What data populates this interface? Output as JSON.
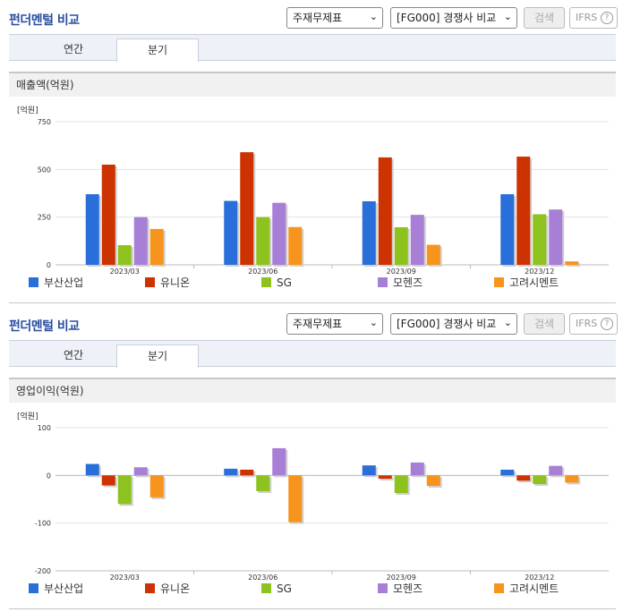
{
  "panels": [
    {
      "header": {
        "title": "펀더멘털 비교",
        "statement_select": "주재무제표",
        "peer_select": "[FG000] 경쟁사 비교",
        "search_label": "검색",
        "ifrs_label": "IFRS",
        "help_label": "?"
      },
      "tabs": [
        "연간",
        "분기"
      ],
      "active_tab": 1,
      "section_title": "매출액(억원)"
    },
    {
      "header": {
        "title": "펀더멘털 비교",
        "statement_select": "주재무제표",
        "peer_select": "[FG000] 경쟁사 비교",
        "search_label": "검색",
        "ifrs_label": "IFRS",
        "help_label": "?"
      },
      "tabs": [
        "연간",
        "분기"
      ],
      "active_tab": 1,
      "section_title": "영업이익(억원)"
    }
  ],
  "colors": {
    "부산산업": "#2a6fd9",
    "유니온": "#cc3300",
    "SG": "#8dc21f",
    "모헨즈": "#a77fd6",
    "고려시멘트": "#f7941d"
  },
  "chart_data": [
    {
      "type": "bar",
      "unit_label": "[억원]",
      "categories": [
        "2023/03",
        "2023/06",
        "2023/09",
        "2023/12"
      ],
      "ylim": [
        0,
        750
      ],
      "yticks": [
        0,
        250,
        500,
        750
      ],
      "grid": true,
      "legend_position": "bottom",
      "series": [
        {
          "name": "부산산업",
          "values": [
            370,
            335,
            333,
            370
          ]
        },
        {
          "name": "유니온",
          "values": [
            525,
            590,
            563,
            567
          ]
        },
        {
          "name": "SG",
          "values": [
            103,
            250,
            197,
            265
          ]
        },
        {
          "name": "모헨즈",
          "values": [
            250,
            325,
            262,
            290
          ]
        },
        {
          "name": "고려시멘트",
          "values": [
            188,
            198,
            105,
            18
          ]
        }
      ]
    },
    {
      "type": "bar",
      "unit_label": "[억원]",
      "categories": [
        "2023/03",
        "2023/06",
        "2023/09",
        "2023/12"
      ],
      "ylim": [
        -200,
        100
      ],
      "yticks": [
        -200,
        -100,
        0,
        100
      ],
      "grid": true,
      "legend_position": "bottom",
      "series": [
        {
          "name": "부산산업",
          "values": [
            24,
            14,
            21,
            12
          ]
        },
        {
          "name": "유니온",
          "values": [
            -21,
            12,
            -7,
            -11
          ]
        },
        {
          "name": "SG",
          "values": [
            -60,
            -33,
            -37,
            -18
          ]
        },
        {
          "name": "모헨즈",
          "values": [
            17,
            57,
            27,
            20
          ]
        },
        {
          "name": "고려시멘트",
          "values": [
            -46,
            -98,
            -22,
            -15
          ]
        }
      ]
    }
  ]
}
